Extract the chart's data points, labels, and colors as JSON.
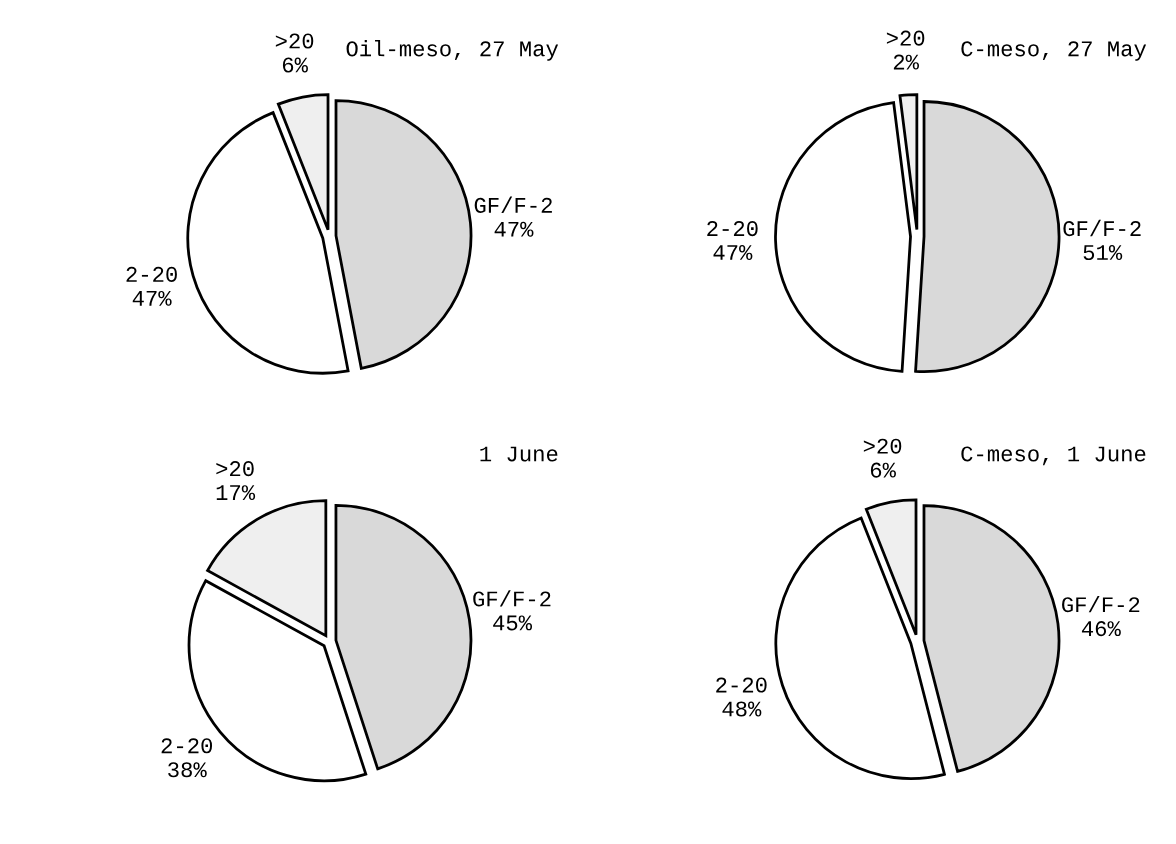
{
  "chart_data": [
    {
      "type": "pie",
      "title": "Oil-meso, 27 May",
      "categories": [
        "GF/F-2",
        "2-20",
        ">20"
      ],
      "values": [
        47,
        47,
        6
      ],
      "value_labels": [
        "47%",
        "47%",
        "6%"
      ],
      "colors": [
        "#d9d9d9",
        "#ffffff",
        "#efefef"
      ]
    },
    {
      "type": "pie",
      "title": "C-meso, 27 May",
      "categories": [
        "GF/F-2",
        "2-20",
        ">20"
      ],
      "values": [
        51,
        47,
        2
      ],
      "value_labels": [
        "51%",
        "47%",
        "2%"
      ],
      "colors": [
        "#d9d9d9",
        "#ffffff",
        "#efefef"
      ]
    },
    {
      "type": "pie",
      "title": "1 June",
      "categories": [
        "GF/F-2",
        "2-20",
        ">20"
      ],
      "values": [
        45,
        38,
        17
      ],
      "value_labels": [
        "45%",
        "38%",
        "17%"
      ],
      "colors": [
        "#d9d9d9",
        "#ffffff",
        "#efefef"
      ]
    },
    {
      "type": "pie",
      "title": "C-meso, 1 June",
      "categories": [
        "GF/F-2",
        "2-20",
        ">20"
      ],
      "values": [
        46,
        48,
        6
      ],
      "value_labels": [
        "46%",
        "48%",
        "6%"
      ],
      "colors": [
        "#d9d9d9",
        "#ffffff",
        "#efefef"
      ]
    }
  ]
}
